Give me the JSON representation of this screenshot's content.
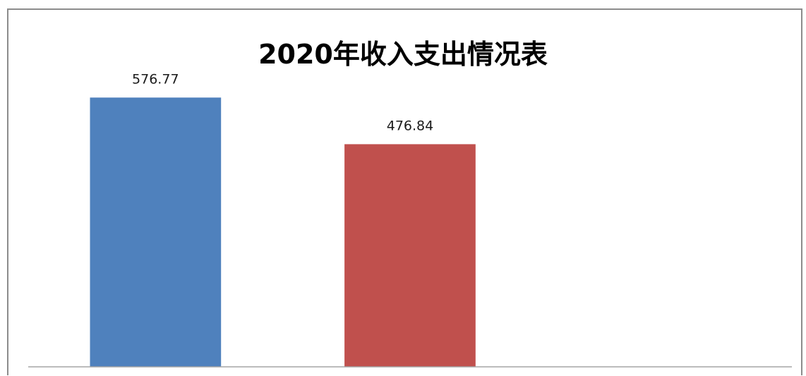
{
  "chart_data": {
    "type": "bar",
    "title": "2020年收入支出情况表",
    "categories": [
      "",
      "",
      ""
    ],
    "values": [
      576.77,
      476.84,
      null
    ],
    "data_labels": [
      "576.77",
      "476.84",
      ""
    ],
    "colors": [
      "#4f81bd",
      "#c0504d",
      "#9bbb59"
    ],
    "ylim": [
      0,
      680
    ],
    "grid": false,
    "legend": "none"
  }
}
